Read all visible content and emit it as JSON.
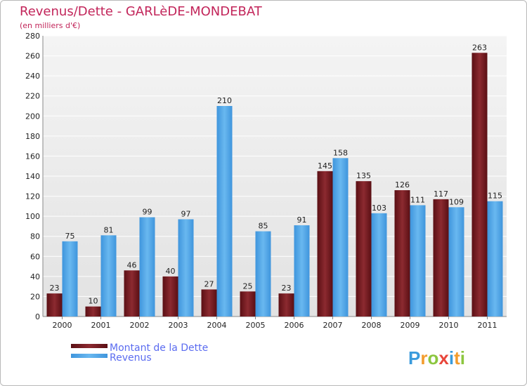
{
  "header": {
    "title": "Revenus/Dette - GARLèDE-MONDEBAT",
    "subtitle": "(en milliers d'€)"
  },
  "logo": {
    "text": "Proxiti"
  },
  "colors": {
    "dette": "#7a1e24",
    "revenus": "#55a8e8",
    "title": "#c2255a",
    "legend_text": "#5b6cf0"
  },
  "chart_data": {
    "type": "bar",
    "title": "Revenus/Dette - GARLèDE-MONDEBAT",
    "subtitle": "(en milliers d'€)",
    "categories": [
      "2000",
      "2001",
      "2002",
      "2003",
      "2004",
      "2005",
      "2006",
      "2007",
      "2008",
      "2009",
      "2010",
      "2011"
    ],
    "series": [
      {
        "name": "Montant de la Dette",
        "values": [
          23,
          10,
          46,
          40,
          27,
          25,
          23,
          145,
          135,
          126,
          117,
          263
        ]
      },
      {
        "name": "Revenus",
        "values": [
          75,
          81,
          99,
          97,
          210,
          85,
          91,
          158,
          103,
          111,
          109,
          115
        ]
      }
    ],
    "ylim": [
      0,
      280
    ],
    "yticks": [
      0,
      20,
      40,
      60,
      80,
      100,
      120,
      140,
      160,
      180,
      200,
      220,
      240,
      260,
      280
    ],
    "grid": true,
    "legend": "bottom-left"
  }
}
